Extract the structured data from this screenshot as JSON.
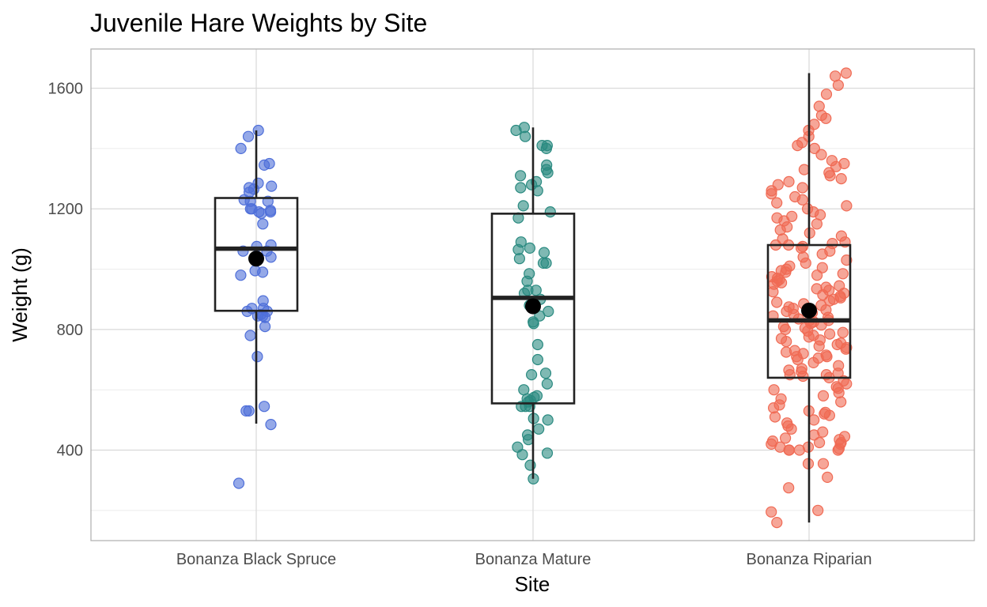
{
  "chart_data": {
    "type": "boxplot",
    "title": "Juvenile Hare Weights by Site",
    "xlabel": "Site",
    "ylabel": "Weight (g)",
    "ylim": [
      100,
      1730
    ],
    "yticks": [
      400,
      800,
      1200,
      1600
    ],
    "grid": true,
    "legend": "none",
    "categories": [
      "Bonanza Black Spruce",
      "Bonanza Mature",
      "Bonanza Riparian"
    ],
    "colors": [
      "#4f6fd9",
      "#2a8a80",
      "#f06a54"
    ],
    "boxes": [
      {
        "q1": 862,
        "median": 1068,
        "q3": 1236,
        "whisker_low": 488,
        "whisker_high": 1460,
        "mean": 1035
      },
      {
        "q1": 555,
        "median": 905,
        "q3": 1184,
        "whisker_low": 305,
        "whisker_high": 1470,
        "mean": 877
      },
      {
        "q1": 640,
        "median": 830,
        "q3": 1080,
        "whisker_low": 160,
        "whisker_high": 1650,
        "mean": 863
      }
    ],
    "series": [
      {
        "values": [
          290,
          485,
          530,
          530,
          545,
          710,
          780,
          810,
          840,
          845,
          845,
          850,
          860,
          860,
          870,
          870,
          895,
          980,
          990,
          995,
          1040,
          1060,
          1060,
          1075,
          1080,
          1150,
          1185,
          1190,
          1190,
          1195,
          1200,
          1200,
          1225,
          1225,
          1230,
          1255,
          1265,
          1270,
          1275,
          1285,
          1345,
          1350,
          1400,
          1440,
          1460
        ]
      },
      {
        "values": [
          305,
          350,
          385,
          390,
          410,
          435,
          450,
          470,
          500,
          505,
          545,
          545,
          545,
          560,
          565,
          570,
          575,
          580,
          600,
          620,
          650,
          655,
          700,
          750,
          820,
          825,
          845,
          860,
          880,
          900,
          920,
          930,
          930,
          960,
          985,
          1020,
          1020,
          1035,
          1055,
          1065,
          1070,
          1090,
          1170,
          1190,
          1210,
          1260,
          1270,
          1280,
          1290,
          1310,
          1320,
          1330,
          1345,
          1400,
          1410,
          1410,
          1440,
          1460,
          1470
        ]
      },
      {
        "values": [
          160,
          195,
          200,
          275,
          310,
          355,
          355,
          400,
          400,
          400,
          400,
          405,
          410,
          410,
          420,
          420,
          425,
          425,
          430,
          435,
          440,
          445,
          450,
          460,
          470,
          480,
          490,
          500,
          510,
          515,
          520,
          525,
          530,
          540,
          550,
          560,
          570,
          580,
          590,
          600,
          605,
          610,
          620,
          630,
          640,
          645,
          650,
          650,
          655,
          660,
          665,
          670,
          680,
          690,
          700,
          705,
          710,
          710,
          715,
          720,
          725,
          730,
          735,
          740,
          745,
          750,
          755,
          760,
          765,
          770,
          775,
          780,
          785,
          790,
          795,
          800,
          805,
          810,
          815,
          820,
          825,
          830,
          830,
          835,
          840,
          845,
          850,
          855,
          860,
          865,
          870,
          875,
          880,
          885,
          890,
          895,
          900,
          905,
          910,
          915,
          920,
          925,
          930,
          935,
          940,
          945,
          950,
          955,
          960,
          965,
          970,
          975,
          980,
          985,
          990,
          995,
          1000,
          1005,
          1010,
          1020,
          1030,
          1040,
          1050,
          1060,
          1070,
          1075,
          1080,
          1080,
          1085,
          1090,
          1100,
          1110,
          1120,
          1130,
          1140,
          1150,
          1160,
          1170,
          1175,
          1180,
          1190,
          1200,
          1210,
          1220,
          1230,
          1240,
          1250,
          1260,
          1270,
          1280,
          1290,
          1300,
          1310,
          1320,
          1330,
          1340,
          1350,
          1360,
          1380,
          1400,
          1410,
          1420,
          1440,
          1460,
          1480,
          1500,
          1510,
          1540,
          1580,
          1610,
          1640,
          1650
        ]
      }
    ]
  }
}
